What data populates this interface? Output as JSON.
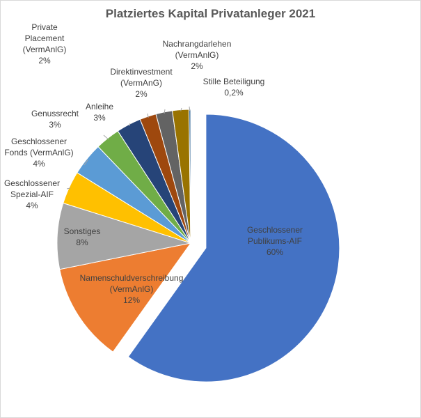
{
  "chart_data": {
    "type": "pie",
    "title": "Platziertes Kapital Privatanleger 2021",
    "slices": [
      {
        "lines": [
          "Geschlossener",
          "Publikums-AIF",
          "60%"
        ],
        "value": 60,
        "color": "#4472c4",
        "exploded": true,
        "label_inside": true
      },
      {
        "lines": [
          "Namenschuldverschreibung",
          "(VermAnlG)",
          "12%"
        ],
        "value": 12,
        "color": "#ed7d31",
        "label_inside": true
      },
      {
        "lines": [
          "Sonstiges",
          "8%"
        ],
        "value": 8,
        "color": "#a5a5a5",
        "label_inside": true
      },
      {
        "lines": [
          "Geschlossener",
          "Spezial-AIF",
          "4%"
        ],
        "value": 4,
        "color": "#ffc000",
        "label_inside": false
      },
      {
        "lines": [
          "Geschlossener",
          "Fonds (VermAnlG)",
          "4%"
        ],
        "value": 4,
        "color": "#5b9bd5",
        "label_inside": false
      },
      {
        "lines": [
          "Genussrecht",
          "3%"
        ],
        "value": 3,
        "color": "#70ad47",
        "label_inside": false
      },
      {
        "lines": [
          "Anleihe",
          "3%"
        ],
        "value": 3,
        "color": "#264478",
        "label_inside": false
      },
      {
        "lines": [
          "Private",
          "Placement",
          "(VermAnlG)",
          "2%"
        ],
        "value": 2,
        "color": "#9e480e",
        "label_inside": false
      },
      {
        "lines": [
          "Direktinvestment",
          "(VermAnG)",
          "2%"
        ],
        "value": 2,
        "color": "#636363",
        "label_inside": false
      },
      {
        "lines": [
          "Nachrangdarlehen",
          "(VermAnlG)",
          "2%"
        ],
        "value": 2,
        "color": "#997300",
        "label_inside": false
      },
      {
        "lines": [
          "Stille Beteiligung",
          "0,2%"
        ],
        "value": 0.2,
        "color": "#255e91",
        "label_inside": false
      }
    ]
  }
}
